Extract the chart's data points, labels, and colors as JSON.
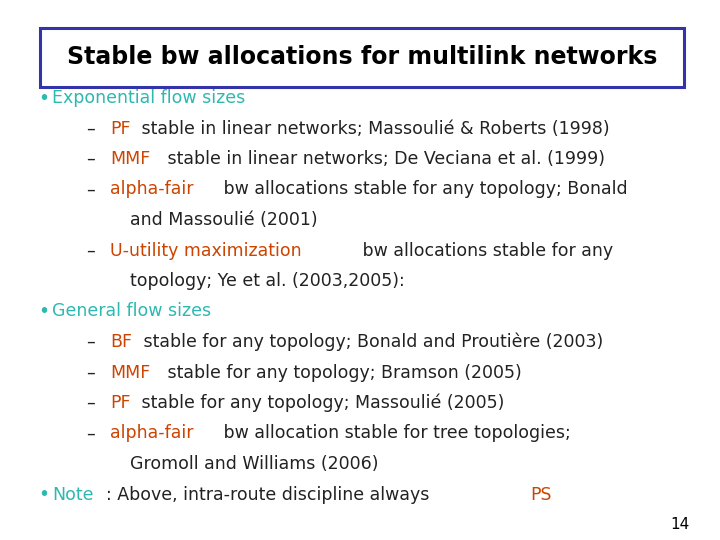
{
  "title": "Stable bw allocations for multilink networks",
  "bg_color": "#ffffff",
  "title_box_color": "#3333aa",
  "teal": "#2db8b0",
  "orange": "#cc4400",
  "black": "#222222",
  "page_number": "14",
  "lines": [
    {
      "indent": 0,
      "bullet": true,
      "dash": false,
      "segments": [
        {
          "text": "Exponential flow sizes",
          "color": "#2db8b0"
        }
      ]
    },
    {
      "indent": 1,
      "bullet": false,
      "dash": true,
      "segments": [
        {
          "text": "PF",
          "color": "#cc4400"
        },
        {
          "text": " stable in linear networks; Massoulié & Roberts (1998)",
          "color": "#222222"
        }
      ]
    },
    {
      "indent": 1,
      "bullet": false,
      "dash": true,
      "segments": [
        {
          "text": "MMF",
          "color": "#cc4400"
        },
        {
          "text": " stable in linear networks; De Veciana et al. (1999)",
          "color": "#222222"
        }
      ]
    },
    {
      "indent": 1,
      "bullet": false,
      "dash": true,
      "segments": [
        {
          "text": "alpha-fair",
          "color": "#cc4400"
        },
        {
          "text": " bw allocations stable for any topology; Bonald",
          "color": "#222222"
        }
      ]
    },
    {
      "indent": 2,
      "bullet": false,
      "dash": false,
      "segments": [
        {
          "text": "and Massoulié (2001)",
          "color": "#222222"
        }
      ]
    },
    {
      "indent": 1,
      "bullet": false,
      "dash": true,
      "segments": [
        {
          "text": "U-utility maximization",
          "color": "#cc4400"
        },
        {
          "text": " bw allocations stable for any",
          "color": "#222222"
        }
      ]
    },
    {
      "indent": 2,
      "bullet": false,
      "dash": false,
      "segments": [
        {
          "text": "topology; Ye et al. (2003,2005):",
          "color": "#222222"
        }
      ]
    },
    {
      "indent": 0,
      "bullet": true,
      "dash": false,
      "segments": [
        {
          "text": "General flow sizes",
          "color": "#2db8b0"
        }
      ]
    },
    {
      "indent": 1,
      "bullet": false,
      "dash": true,
      "segments": [
        {
          "text": "BF",
          "color": "#cc4400"
        },
        {
          "text": " stable for any topology; Bonald and Proutière (2003)",
          "color": "#222222"
        }
      ]
    },
    {
      "indent": 1,
      "bullet": false,
      "dash": true,
      "segments": [
        {
          "text": "MMF",
          "color": "#cc4400"
        },
        {
          "text": " stable for any topology; Bramson (2005)",
          "color": "#222222"
        }
      ]
    },
    {
      "indent": 1,
      "bullet": false,
      "dash": true,
      "segments": [
        {
          "text": "PF",
          "color": "#cc4400"
        },
        {
          "text": " stable for any topology; Massoulié (2005)",
          "color": "#222222"
        }
      ]
    },
    {
      "indent": 1,
      "bullet": false,
      "dash": true,
      "segments": [
        {
          "text": "alpha-fair",
          "color": "#cc4400"
        },
        {
          "text": " bw allocation stable for tree topologies;",
          "color": "#222222"
        }
      ]
    },
    {
      "indent": 2,
      "bullet": false,
      "dash": false,
      "segments": [
        {
          "text": "Gromoll and Williams (2006)",
          "color": "#222222"
        }
      ]
    },
    {
      "indent": 0,
      "bullet": true,
      "dash": false,
      "segments": [
        {
          "text": "Note",
          "color": "#2db8b0"
        },
        {
          "text": ": Above, intra-route discipline always ",
          "color": "#222222"
        },
        {
          "text": "PS",
          "color": "#cc4400"
        }
      ]
    }
  ]
}
